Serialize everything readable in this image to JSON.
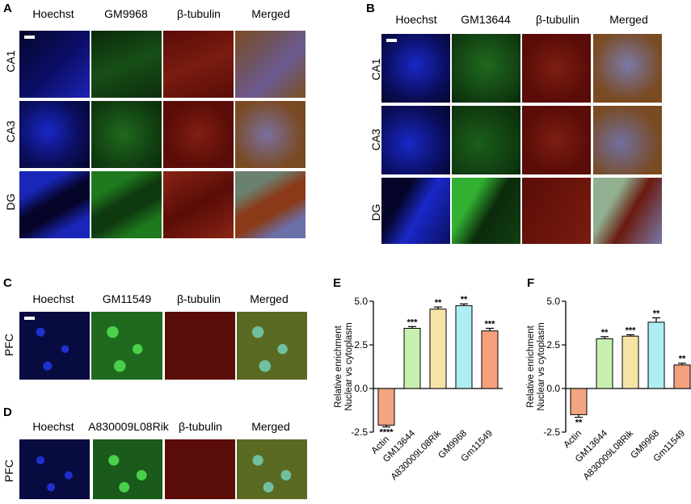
{
  "panels": {
    "A": {
      "letter": "A",
      "columns": [
        "Hoechst",
        "GM9968",
        "β-tubulin",
        "Merged"
      ],
      "rows": [
        "CA1",
        "CA3",
        "DG"
      ]
    },
    "B": {
      "letter": "B",
      "columns": [
        "Hoechst",
        "GM13644",
        "β-tubulin",
        "Merged"
      ],
      "rows": [
        "CA1",
        "CA3",
        "DG"
      ]
    },
    "C": {
      "letter": "C",
      "columns": [
        "Hoechst",
        "GM11549",
        "β-tubulin",
        "Merged"
      ],
      "rows": [
        "PFC"
      ]
    },
    "D": {
      "letter": "D",
      "columns": [
        "Hoechst",
        "A830009L08Rik",
        "β-tubulin",
        "Merged"
      ],
      "rows": [
        "PFC"
      ]
    }
  },
  "colors": {
    "actin": "#f4a582",
    "gm13644": "#c7f0b0",
    "a830009l08rik": "#f6e3a6",
    "gm9968": "#aeeef2",
    "gm11549": "#f6a07e"
  },
  "chart_data": [
    {
      "panel": "E",
      "type": "bar",
      "categories": [
        "Actin",
        "GM13644",
        "A830009L08Rik",
        "GM9968",
        "Gm11549"
      ],
      "values": [
        -2.1,
        3.45,
        4.55,
        4.75,
        3.3
      ],
      "errors": [
        0.1,
        0.1,
        0.12,
        0.1,
        0.15
      ],
      "significance": [
        "****",
        "***",
        "**",
        "**",
        "***"
      ],
      "ylabel": "Relative enrichment\nNuclear vs cytoplasm",
      "ylim": [
        -2.5,
        5.0
      ],
      "yticks": [
        "5.0",
        "2.5",
        "0.0",
        "-2.5"
      ]
    },
    {
      "panel": "F",
      "type": "bar",
      "categories": [
        "Actin",
        "GM13644",
        "A830009L08Rik",
        "GM9968",
        "Gm11549"
      ],
      "values": [
        -1.5,
        2.85,
        3.0,
        3.8,
        1.35
      ],
      "errors": [
        0.15,
        0.12,
        0.08,
        0.25,
        0.1
      ],
      "significance": [
        "**",
        "**",
        "***",
        "**",
        "**"
      ],
      "ylabel": "Relative enrichment\nNuclear vs cytoplasm",
      "ylim": [
        -2.5,
        5.0
      ],
      "yticks": [
        "5.0",
        "2.5",
        "0.0",
        "-2.5"
      ]
    }
  ]
}
